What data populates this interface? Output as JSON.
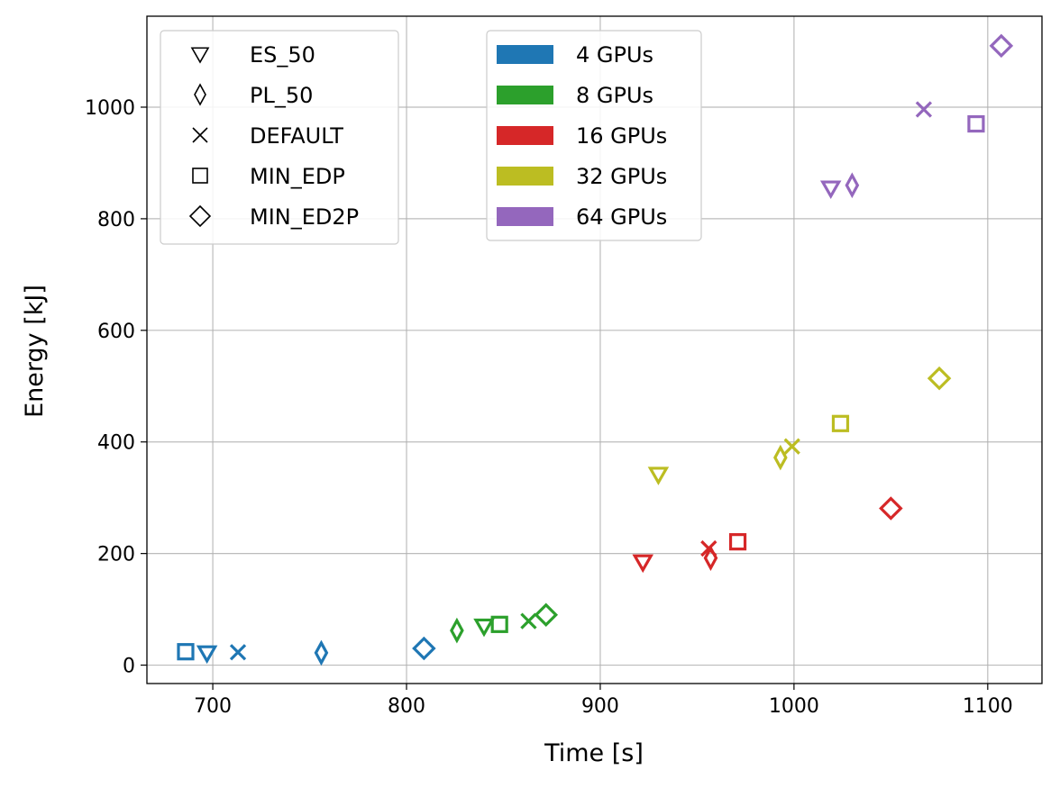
{
  "chart_data": {
    "type": "scatter",
    "xlabel": "Time [s]",
    "ylabel": "Energy [kJ]",
    "xlim": [
      666,
      1128
    ],
    "ylim": [
      -33,
      1163
    ],
    "xticks": [
      700,
      800,
      900,
      1000,
      1100
    ],
    "yticks": [
      0,
      200,
      400,
      600,
      800,
      1000
    ],
    "grid": true,
    "marker_legend": {
      "placement": "top-left",
      "entries": [
        {
          "marker": "triangle-down",
          "label": "ES_50"
        },
        {
          "marker": "thin-diamond",
          "label": "PL_50"
        },
        {
          "marker": "x",
          "label": "DEFAULT"
        },
        {
          "marker": "square",
          "label": "MIN_EDP"
        },
        {
          "marker": "diamond",
          "label": "MIN_ED2P"
        }
      ]
    },
    "color_legend": {
      "placement": "top-center",
      "entries": [
        {
          "label": "4 GPUs",
          "color": "#1f77b4"
        },
        {
          "label": "8 GPUs",
          "color": "#2ca02c"
        },
        {
          "label": "16 GPUs",
          "color": "#d62728"
        },
        {
          "label": "32 GPUs",
          "color": "#bcbd22"
        },
        {
          "label": "64 GPUs",
          "color": "#9467bd"
        }
      ]
    },
    "series": [
      {
        "gpus": "4 GPUs",
        "color": "#1f77b4",
        "points": [
          {
            "config": "ES_50",
            "x": 697,
            "y": 22
          },
          {
            "config": "PL_50",
            "x": 756,
            "y": 22
          },
          {
            "config": "DEFAULT",
            "x": 713,
            "y": 23
          },
          {
            "config": "MIN_EDP",
            "x": 686,
            "y": 24
          },
          {
            "config": "MIN_ED2P",
            "x": 809,
            "y": 30
          }
        ]
      },
      {
        "gpus": "8 GPUs",
        "color": "#2ca02c",
        "points": [
          {
            "config": "ES_50",
            "x": 840,
            "y": 70
          },
          {
            "config": "PL_50",
            "x": 826,
            "y": 62
          },
          {
            "config": "DEFAULT",
            "x": 863,
            "y": 79
          },
          {
            "config": "MIN_EDP",
            "x": 848,
            "y": 73
          },
          {
            "config": "MIN_ED2P",
            "x": 872,
            "y": 90
          }
        ]
      },
      {
        "gpus": "16 GPUs",
        "color": "#d62728",
        "points": [
          {
            "config": "ES_50",
            "x": 922,
            "y": 185
          },
          {
            "config": "PL_50",
            "x": 957,
            "y": 192
          },
          {
            "config": "DEFAULT",
            "x": 956,
            "y": 209
          },
          {
            "config": "MIN_EDP",
            "x": 971,
            "y": 221
          },
          {
            "config": "MIN_ED2P",
            "x": 1050,
            "y": 281
          }
        ]
      },
      {
        "gpus": "32 GPUs",
        "color": "#bcbd22",
        "points": [
          {
            "config": "ES_50",
            "x": 930,
            "y": 342
          },
          {
            "config": "PL_50",
            "x": 993,
            "y": 372
          },
          {
            "config": "DEFAULT",
            "x": 999,
            "y": 392
          },
          {
            "config": "MIN_EDP",
            "x": 1024,
            "y": 433
          },
          {
            "config": "MIN_ED2P",
            "x": 1075,
            "y": 514
          }
        ]
      },
      {
        "gpus": "64 GPUs",
        "color": "#9467bd",
        "points": [
          {
            "config": "ES_50",
            "x": 1019,
            "y": 855
          },
          {
            "config": "PL_50",
            "x": 1030,
            "y": 860
          },
          {
            "config": "DEFAULT",
            "x": 1067,
            "y": 996
          },
          {
            "config": "MIN_EDP",
            "x": 1094,
            "y": 970
          },
          {
            "config": "MIN_ED2P",
            "x": 1107,
            "y": 1110
          }
        ]
      }
    ]
  }
}
